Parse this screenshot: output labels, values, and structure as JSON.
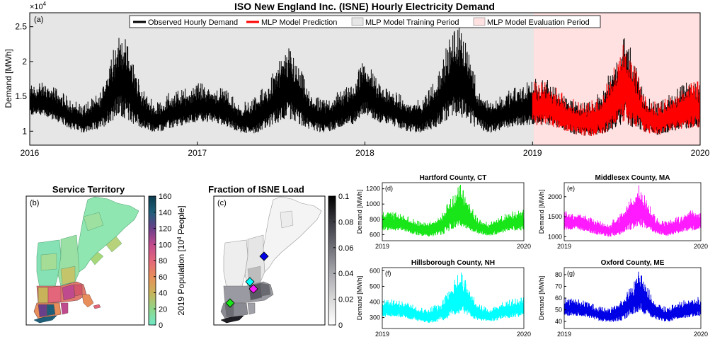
{
  "figure": {
    "main_title": "ISO New England Inc. (ISNE) Hourly Electricity Demand"
  },
  "chart_data": [
    {
      "type": "line",
      "panel": "(a)",
      "title": "ISO New England Inc. (ISNE) Hourly Electricity Demand",
      "xlabel": "",
      "ylabel": "Demand [MWh]",
      "y_exponent": "×10",
      "y_exponent_power": "4",
      "xlim": [
        2016,
        2020
      ],
      "ylim": [
        0.8,
        2.7
      ],
      "x_ticks": [
        "2016",
        "2017",
        "2018",
        "2019",
        "2020"
      ],
      "y_ticks": [
        "1",
        "1.5",
        "2",
        "2.5"
      ],
      "legend_position": "top-center",
      "legend": [
        {
          "name": "Observed Hourly Demand",
          "color": "#000000",
          "kind": "line"
        },
        {
          "name": "MLP Model Prediction",
          "color": "#ff0000",
          "kind": "line"
        },
        {
          "name": "MLP Model Training Period",
          "color": "#e6e6e6",
          "kind": "patch"
        },
        {
          "name": "MLP Model Evaluation Period",
          "color": "#ffe1e1",
          "kind": "patch"
        }
      ],
      "shaded_periods": [
        {
          "name": "MLP Model Training Period",
          "start": 2016,
          "end": 2019,
          "color": "#e6e6e6"
        },
        {
          "name": "MLP Model Evaluation Period",
          "start": 2019,
          "end": 2020,
          "color": "#ffe1e1"
        }
      ],
      "series": [
        {
          "name": "Observed Hourly Demand",
          "color": "#000000",
          "x": [
            2016.0,
            2016.08,
            2016.17,
            2016.25,
            2016.33,
            2016.42,
            2016.5,
            2016.54,
            2016.58,
            2016.67,
            2016.75,
            2016.83,
            2016.92,
            2017.0,
            2017.08,
            2017.17,
            2017.25,
            2017.33,
            2017.42,
            2017.5,
            2017.55,
            2017.6,
            2017.67,
            2017.75,
            2017.83,
            2017.92,
            2018.0,
            2018.08,
            2018.17,
            2018.25,
            2018.33,
            2018.42,
            2018.5,
            2018.55,
            2018.6,
            2018.67,
            2018.75,
            2018.83,
            2018.92,
            2019.0,
            2019.08,
            2019.17,
            2019.25,
            2019.33,
            2019.42,
            2019.5,
            2019.55,
            2019.6,
            2019.67,
            2019.75,
            2019.83,
            2019.92,
            2020.0
          ],
          "low": [
            1.2,
            1.2,
            1.1,
            1.0,
            0.95,
            1.0,
            1.1,
            1.15,
            1.1,
            1.0,
            0.95,
            1.0,
            1.05,
            1.1,
            1.1,
            1.05,
            0.95,
            0.93,
            1.0,
            1.1,
            1.12,
            1.05,
            1.0,
            0.95,
            1.0,
            1.05,
            1.2,
            1.1,
            1.05,
            0.97,
            0.95,
            1.0,
            1.12,
            1.15,
            1.1,
            1.0,
            0.95,
            1.0,
            1.05,
            1.05,
            1.05,
            1.0,
            0.93,
            0.9,
            0.92,
            1.0,
            1.05,
            1.0,
            0.95,
            0.92,
            0.97,
            1.0,
            1.02
          ],
          "high": [
            1.65,
            1.7,
            1.6,
            1.45,
            1.4,
            1.55,
            2.25,
            2.45,
            2.3,
            1.6,
            1.4,
            1.55,
            1.6,
            1.7,
            1.65,
            1.6,
            1.4,
            1.45,
            1.7,
            2.05,
            2.2,
            2.0,
            1.55,
            1.45,
            1.55,
            1.7,
            2.05,
            1.7,
            1.6,
            1.45,
            1.45,
            1.75,
            2.3,
            2.5,
            2.45,
            1.65,
            1.45,
            1.55,
            1.65,
            1.75,
            1.75,
            1.6,
            1.45,
            1.4,
            1.6,
            2.1,
            2.4,
            2.1,
            1.5,
            1.4,
            1.55,
            1.7,
            1.75
          ]
        },
        {
          "name": "MLP Model Prediction",
          "color": "#ff0000",
          "x": [
            2019.0,
            2019.08,
            2019.17,
            2019.25,
            2019.33,
            2019.42,
            2019.5,
            2019.55,
            2019.6,
            2019.67,
            2019.75,
            2019.83,
            2019.92,
            2020.0
          ],
          "low": [
            1.05,
            1.05,
            1.0,
            0.93,
            0.9,
            0.92,
            1.0,
            1.05,
            1.0,
            0.95,
            0.92,
            0.97,
            1.0,
            1.02
          ],
          "high": [
            1.72,
            1.72,
            1.58,
            1.45,
            1.4,
            1.58,
            2.05,
            2.35,
            2.05,
            1.5,
            1.4,
            1.52,
            1.68,
            1.72
          ]
        }
      ]
    },
    {
      "type": "line",
      "panel": "(d)",
      "title": "Hartford County, CT",
      "ylabel": "Demand [MWh]",
      "xlim": [
        2019,
        2020
      ],
      "ylim": [
        520,
        1280
      ],
      "x_ticks": [
        "2019",
        "2020"
      ],
      "y_ticks": [
        "600",
        "800",
        "1000",
        "1200"
      ],
      "series": [
        {
          "color": "#19e619",
          "x": [
            2019.0,
            2019.08,
            2019.17,
            2019.25,
            2019.33,
            2019.42,
            2019.5,
            2019.55,
            2019.6,
            2019.67,
            2019.75,
            2019.83,
            2019.92,
            2020.0
          ],
          "low": [
            640,
            640,
            620,
            580,
            560,
            580,
            650,
            680,
            650,
            600,
            570,
            600,
            630,
            640
          ],
          "high": [
            920,
            900,
            850,
            780,
            760,
            880,
            1120,
            1260,
            1100,
            820,
            760,
            840,
            920,
            930
          ]
        }
      ]
    },
    {
      "type": "line",
      "panel": "(e)",
      "title": "Middlesex County, MA",
      "ylabel": "Demand [MWh]",
      "xlim": [
        2019,
        2020
      ],
      "ylim": [
        900,
        2350
      ],
      "x_ticks": [
        "2019",
        "2020"
      ],
      "y_ticks": [
        "1000",
        "1500",
        "2000"
      ],
      "series": [
        {
          "color": "#ff1aff",
          "x": [
            2019.0,
            2019.08,
            2019.17,
            2019.25,
            2019.33,
            2019.42,
            2019.5,
            2019.55,
            2019.6,
            2019.67,
            2019.75,
            2019.83,
            2019.92,
            2020.0
          ],
          "low": [
            1150,
            1150,
            1100,
            1020,
            980,
            1020,
            1150,
            1200,
            1150,
            1060,
            1000,
            1060,
            1120,
            1150
          ],
          "high": [
            1650,
            1620,
            1520,
            1400,
            1350,
            1600,
            2050,
            2300,
            2000,
            1480,
            1380,
            1500,
            1650,
            1680
          ]
        }
      ]
    },
    {
      "type": "line",
      "panel": "(f)",
      "title": "Hillsborough County, NH",
      "ylabel": "Demand [MWh]",
      "xlim": [
        2019,
        2020
      ],
      "ylim": [
        230,
        620
      ],
      "x_ticks": [
        "2019",
        "2020"
      ],
      "y_ticks": [
        "300",
        "400",
        "500",
        "600"
      ],
      "series": [
        {
          "color": "#00ffff",
          "x": [
            2019.0,
            2019.08,
            2019.17,
            2019.25,
            2019.33,
            2019.42,
            2019.5,
            2019.55,
            2019.6,
            2019.67,
            2019.75,
            2019.83,
            2019.92,
            2020.0
          ],
          "low": [
            300,
            300,
            290,
            270,
            260,
            270,
            300,
            315,
            300,
            280,
            265,
            280,
            295,
            300
          ],
          "high": [
            420,
            415,
            400,
            370,
            360,
            410,
            530,
            600,
            520,
            390,
            360,
            395,
            420,
            430
          ]
        }
      ]
    },
    {
      "type": "line",
      "panel": "(g)",
      "title": "Oxford County, ME",
      "ylabel": "Demand [MWh]",
      "xlim": [
        2019,
        2020
      ],
      "ylim": [
        34,
        86
      ],
      "x_ticks": [
        "2019",
        "2020"
      ],
      "y_ticks": [
        "40",
        "50",
        "60",
        "70",
        "80"
      ],
      "series": [
        {
          "color": "#0000e6",
          "x": [
            2019.0,
            2019.08,
            2019.17,
            2019.25,
            2019.33,
            2019.42,
            2019.5,
            2019.55,
            2019.6,
            2019.67,
            2019.75,
            2019.83,
            2019.92,
            2020.0
          ],
          "low": [
            44,
            44,
            43,
            40,
            38,
            40,
            44,
            46,
            44,
            41,
            39,
            41,
            43,
            44
          ],
          "high": [
            60,
            60,
            57,
            53,
            52,
            58,
            72,
            84,
            72,
            56,
            52,
            56,
            60,
            61
          ]
        }
      ]
    }
  ],
  "maps": {
    "service": {
      "title": "Service Territory",
      "panel": "(b)",
      "colorbar_label_main": "2019 Population [10",
      "colorbar_label_sup": "4",
      "colorbar_label_end": " People]",
      "colorbar_ticks": [
        "0",
        "20",
        "40",
        "60",
        "80",
        "100",
        "120",
        "140",
        "160"
      ],
      "colorbar_range": [
        0,
        160
      ],
      "colormap": [
        "#6fe8c6",
        "#8fd68a",
        "#c9b35a",
        "#e88e5a",
        "#e4667a",
        "#c04a8e",
        "#6a3f8a",
        "#1f5f7a",
        "#0b3c4e"
      ]
    },
    "load": {
      "title": "Fraction of ISNE Load",
      "panel": "(c)",
      "colorbar_ticks": [
        "0",
        "0.02",
        "0.04",
        "0.06",
        "0.08",
        "0.1"
      ],
      "colorbar_range": [
        0,
        0.1
      ],
      "colormap": [
        "#ffffff",
        "#d9d9d9",
        "#a9a9b0",
        "#707078",
        "#3a3a42",
        "#000000"
      ],
      "markers": [
        {
          "name": "Hartford County, CT",
          "color": "#19e619"
        },
        {
          "name": "Middlesex County, MA",
          "color": "#ff1aff"
        },
        {
          "name": "Hillsborough County, NH",
          "color": "#00ffff"
        },
        {
          "name": "Oxford County, ME",
          "color": "#0000e6"
        }
      ]
    }
  }
}
